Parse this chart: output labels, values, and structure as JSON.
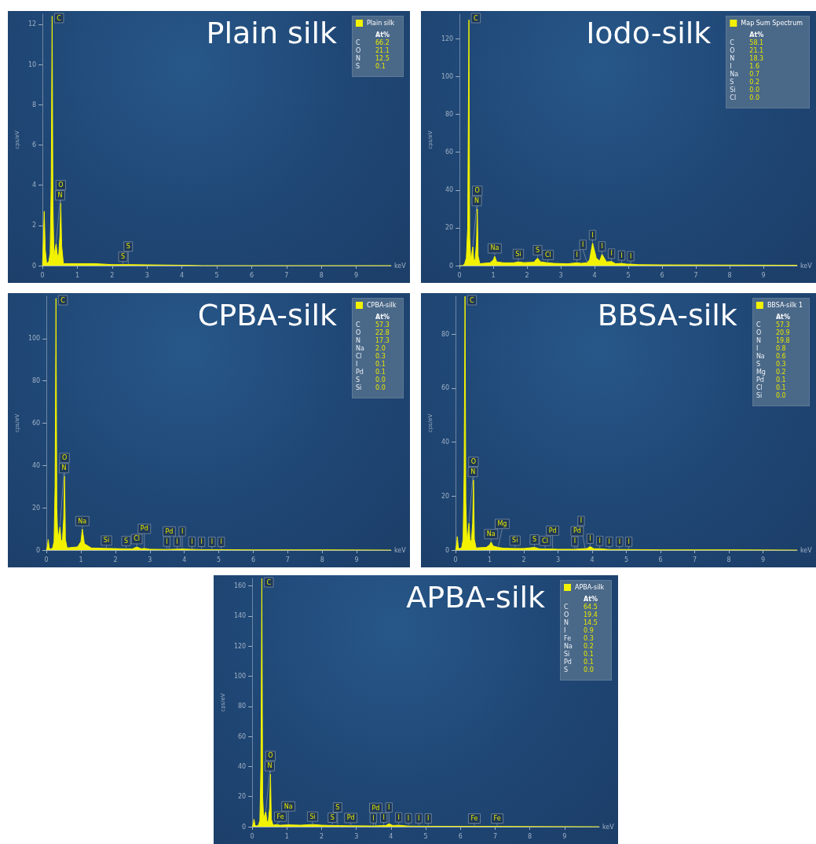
{
  "chart_data": [
    {
      "type": "area",
      "title": "Plain silk",
      "xlabel": "keV",
      "ylabel": "cps/eV",
      "xlim": [
        0,
        10
      ],
      "xticks": [
        0,
        1,
        2,
        3,
        4,
        5,
        6,
        7,
        8,
        9
      ],
      "ylim": [
        0,
        12.5
      ],
      "yticks": [
        0,
        2,
        4,
        6,
        8,
        10,
        12
      ],
      "grid": false,
      "legend": "top right",
      "marker": "none",
      "line_style": "solid",
      "x": [
        0,
        0.03,
        0.05,
        0.08,
        0.12,
        0.18,
        0.22,
        0.25,
        0.277,
        0.3,
        0.33,
        0.36,
        0.392,
        0.42,
        0.46,
        0.5,
        0.525,
        0.55,
        0.6,
        0.7,
        1.0,
        1.5,
        2.0,
        2.5,
        3.0,
        4.0,
        4.6,
        10.0
      ],
      "series": [
        {
          "name": "Plain silk",
          "color": "#f2f200",
          "values": [
            0,
            1.5,
            2.7,
            0.8,
            0.1,
            0.2,
            0.6,
            4,
            12.4,
            3,
            0.5,
            0.8,
            1.1,
            0.6,
            0.4,
            1.5,
            3.1,
            1.0,
            0.1,
            0.1,
            0.1,
            0.1,
            0.05,
            0.05,
            0.04,
            0.02,
            0,
            0
          ]
        }
      ],
      "annotations": [
        {
          "text": "C",
          "x": 0.277,
          "y": 12.4
        },
        {
          "text": "N",
          "x": 0.392,
          "y": 1.1
        },
        {
          "text": "O",
          "x": 0.525,
          "y": 3.1
        },
        {
          "text": "S",
          "x": 2.31,
          "y": 0.05
        },
        {
          "text": "S",
          "x": 2.46,
          "y": 0.05
        },
        "At%",
        "C",
        "66.2",
        "O",
        "21.1",
        "N",
        "12.5",
        "S",
        "0.1"
      ]
    },
    {
      "type": "area",
      "title": "Iodo-silk",
      "xlabel": "keV",
      "ylabel": "cps/eV",
      "xlim": [
        0,
        10
      ],
      "xticks": [
        0,
        1,
        2,
        3,
        4,
        5,
        6,
        7,
        8,
        9
      ],
      "ylim": [
        0,
        133
      ],
      "yticks": [
        0,
        20,
        40,
        60,
        80,
        100,
        120
      ],
      "grid": false,
      "legend": "top right",
      "marker": "none",
      "line_style": "solid",
      "x": [
        0.0,
        0.1,
        0.15,
        0.2,
        0.24,
        0.277,
        0.3,
        0.33,
        0.36,
        0.392,
        0.42,
        0.46,
        0.5,
        0.525,
        0.55,
        0.6,
        0.7,
        0.9,
        1.0,
        1.04,
        1.1,
        1.3,
        1.6,
        1.74,
        1.9,
        2.2,
        2.31,
        2.4,
        2.62,
        2.8,
        3.2,
        3.48,
        3.6,
        3.77,
        3.85,
        3.94,
        4.05,
        4.15,
        4.22,
        4.35,
        4.5,
        4.62,
        4.8,
        4.95,
        5.07,
        5.3,
        6.0,
        8.0,
        10.0
      ],
      "series": [
        {
          "name": "Map Sum Spectrum",
          "color": "#f2f200",
          "values": [
            0,
            0,
            1,
            4,
            20,
            130,
            15,
            4,
            6,
            10,
            3,
            3,
            12,
            30,
            5,
            1,
            1.2,
            1.5,
            3,
            5,
            2,
            1.5,
            1.5,
            2,
            1.6,
            1.8,
            4,
            2,
            1.5,
            1.2,
            1,
            1.5,
            1.2,
            1.5,
            3,
            12,
            4,
            2.5,
            6,
            2,
            2.2,
            1,
            1.2,
            0.8,
            0.8,
            0.5,
            0.4,
            0.3,
            0.2
          ]
        }
      ],
      "annotations": [
        {
          "text": "C",
          "x": 0.277,
          "y": 130
        },
        {
          "text": "N",
          "x": 0.392,
          "y": 10
        },
        {
          "text": "O",
          "x": 0.525,
          "y": 30
        },
        {
          "text": "Na",
          "x": 1.04,
          "y": 5
        },
        {
          "text": "Si",
          "x": 1.74,
          "y": 2
        },
        {
          "text": "S",
          "x": 2.31,
          "y": 4
        },
        {
          "text": "Cl",
          "x": 2.62,
          "y": 1.5
        },
        {
          "text": "I",
          "x": 3.48,
          "y": 1.5
        },
        {
          "text": "I",
          "x": 3.77,
          "y": 1.5
        },
        {
          "text": "I",
          "x": 3.94,
          "y": 12
        },
        {
          "text": "I",
          "x": 4.22,
          "y": 6
        },
        {
          "text": "I",
          "x": 4.5,
          "y": 2.2
        },
        {
          "text": "I",
          "x": 4.8,
          "y": 1.2
        },
        {
          "text": "I",
          "x": 5.07,
          "y": 0.8
        },
        "At%",
        "C",
        "58.1",
        "O",
        "21.1",
        "N",
        "18.3",
        "I",
        "1.6",
        "Na",
        "0.7",
        "S",
        "0.2",
        "Si",
        "0.0",
        "Cl",
        "0.0"
      ]
    },
    {
      "type": "area",
      "title": "CPBA-silk",
      "xlabel": "keV",
      "ylabel": "cps/eV",
      "xlim": [
        0,
        10
      ],
      "xticks": [
        0,
        1,
        2,
        3,
        4,
        5,
        6,
        7,
        8,
        9
      ],
      "ylim": [
        0,
        120
      ],
      "yticks": [
        0,
        20,
        40,
        60,
        80,
        100
      ],
      "grid": false,
      "legend": "top right",
      "marker": "none",
      "line_style": "solid",
      "x": [
        0,
        0.03,
        0.05,
        0.08,
        0.12,
        0.18,
        0.22,
        0.25,
        0.277,
        0.3,
        0.33,
        0.36,
        0.392,
        0.42,
        0.46,
        0.5,
        0.525,
        0.55,
        0.6,
        0.7,
        0.9,
        1.0,
        1.04,
        1.1,
        1.3,
        1.74,
        2.0,
        2.31,
        2.5,
        2.62,
        2.75,
        2.84,
        3.0,
        3.5,
        3.94,
        4.5,
        5.0,
        6.0,
        8.0,
        10.0
      ],
      "series": [
        {
          "name": "CPBA-silk",
          "color": "#f2f200",
          "values": [
            0,
            2,
            5,
            1,
            0.5,
            1,
            4,
            30,
            119,
            20,
            5,
            8,
            11,
            5,
            4,
            15,
            35,
            5,
            1,
            1.2,
            1.5,
            4,
            10,
            3,
            1,
            0.8,
            0.7,
            0.6,
            0.6,
            1.5,
            0.6,
            0.8,
            0.4,
            0.3,
            0.5,
            0.2,
            0.2,
            0.1,
            0.1,
            0
          ]
        }
      ],
      "annotations": [
        {
          "text": "C",
          "x": 0.277,
          "y": 119
        },
        {
          "text": "N",
          "x": 0.392,
          "y": 11
        },
        {
          "text": "O",
          "x": 0.525,
          "y": 35
        },
        {
          "text": "Na",
          "x": 1.04,
          "y": 10
        },
        {
          "text": "Si",
          "x": 1.74,
          "y": 0.8
        },
        {
          "text": "S",
          "x": 2.31,
          "y": 0.6
        },
        {
          "text": "Cl",
          "x": 2.62,
          "y": 1.5
        },
        {
          "text": "Pd",
          "x": 2.84,
          "y": 0.8
        },
        {
          "text": "I",
          "x": 3.49,
          "y": 0.3
        },
        {
          "text": "Pd",
          "x": 3.56,
          "y": 0.3
        },
        {
          "text": "I",
          "x": 3.79,
          "y": 0.3
        },
        {
          "text": "I",
          "x": 3.94,
          "y": 0.5
        },
        {
          "text": "I",
          "x": 4.22,
          "y": 0.3
        },
        {
          "text": "I",
          "x": 4.5,
          "y": 0.2
        },
        {
          "text": "I",
          "x": 4.8,
          "y": 0.2
        },
        {
          "text": "I",
          "x": 5.07,
          "y": 0.2
        },
        "At%",
        "C",
        "57.3",
        "O",
        "22.8",
        "N",
        "17.3",
        "Na",
        "2.0",
        "Cl",
        "0.3",
        "I",
        "0.1",
        "Pd",
        "0.1",
        "S",
        "0.0",
        "Si",
        "0.0"
      ]
    },
    {
      "type": "area",
      "title": "BBSA-silk",
      "xlabel": "keV",
      "ylabel": "cps/eV",
      "xlim": [
        0,
        10
      ],
      "xticks": [
        0,
        1,
        2,
        3,
        4,
        5,
        6,
        7,
        8,
        9
      ],
      "ylim": [
        0,
        94
      ],
      "yticks": [
        0,
        20,
        40,
        60,
        80
      ],
      "grid": false,
      "legend": "top right",
      "marker": "none",
      "line_style": "solid",
      "x": [
        0,
        0.03,
        0.05,
        0.08,
        0.12,
        0.18,
        0.22,
        0.25,
        0.277,
        0.3,
        0.33,
        0.36,
        0.392,
        0.42,
        0.46,
        0.5,
        0.525,
        0.55,
        0.6,
        0.7,
        0.9,
        1.0,
        1.04,
        1.1,
        1.25,
        1.4,
        1.74,
        2.0,
        2.31,
        2.45,
        2.62,
        2.84,
        3.0,
        3.5,
        3.85,
        3.94,
        4.05,
        4.22,
        4.5,
        5.0,
        6.0,
        8.0,
        10.0
      ],
      "series": [
        {
          "name": "BBSA-silk 1",
          "color": "#f2f200",
          "values": [
            0,
            2,
            5,
            1,
            0.5,
            1,
            4,
            28,
            94,
            18,
            4,
            6,
            10,
            4,
            3,
            10,
            26,
            4,
            0.8,
            0.9,
            1,
            2,
            3,
            1.5,
            1,
            0.7,
            0.6,
            0.6,
            1,
            0.5,
            0.4,
            0.4,
            0.3,
            0.3,
            0.6,
            1.3,
            0.5,
            0.5,
            0.2,
            0.2,
            0.1,
            0.1,
            0
          ]
        }
      ],
      "annotations": [
        {
          "text": "C",
          "x": 0.277,
          "y": 94
        },
        {
          "text": "N",
          "x": 0.392,
          "y": 10
        },
        {
          "text": "O",
          "x": 0.525,
          "y": 26
        },
        {
          "text": "Na",
          "x": 1.04,
          "y": 3
        },
        {
          "text": "Mg",
          "x": 1.25,
          "y": 1
        },
        {
          "text": "Si",
          "x": 1.74,
          "y": 0.6
        },
        {
          "text": "S",
          "x": 2.31,
          "y": 1
        },
        {
          "text": "Cl",
          "x": 2.62,
          "y": 0.4
        },
        {
          "text": "Pd",
          "x": 2.84,
          "y": 0.4
        },
        {
          "text": "I",
          "x": 3.49,
          "y": 0.3
        },
        {
          "text": "Pd",
          "x": 3.56,
          "y": 0.3
        },
        {
          "text": "I",
          "x": 3.79,
          "y": 0.4
        },
        {
          "text": "I",
          "x": 3.94,
          "y": 1.3
        },
        {
          "text": "I",
          "x": 4.22,
          "y": 0.5
        },
        {
          "text": "I",
          "x": 4.5,
          "y": 0.2
        },
        {
          "text": "I",
          "x": 4.8,
          "y": 0.2
        },
        {
          "text": "I",
          "x": 5.07,
          "y": 0.2
        },
        "At%",
        "C",
        "57.3",
        "O",
        "20.9",
        "N",
        "19.8",
        "I",
        "0.8",
        "Na",
        "0.6",
        "S",
        "0.3",
        "Mg",
        "0.2",
        "Pd",
        "0.1",
        "Cl",
        "0.1",
        "Si",
        "0.0"
      ]
    },
    {
      "type": "area",
      "title": "APBA-silk",
      "xlabel": "keV",
      "ylabel": "cps/eV",
      "xlim": [
        0,
        10
      ],
      "xticks": [
        0,
        1,
        2,
        3,
        4,
        5,
        6,
        7,
        8,
        9
      ],
      "ylim": [
        0,
        165
      ],
      "yticks": [
        0,
        20,
        40,
        60,
        80,
        100,
        120,
        140,
        160
      ],
      "grid": false,
      "legend": "top right",
      "marker": "none",
      "line_style": "solid",
      "x": [
        0,
        0.03,
        0.05,
        0.08,
        0.12,
        0.18,
        0.22,
        0.25,
        0.277,
        0.3,
        0.33,
        0.36,
        0.392,
        0.42,
        0.46,
        0.5,
        0.525,
        0.55,
        0.6,
        0.7,
        0.8,
        1.0,
        1.04,
        1.1,
        1.4,
        1.74,
        2.0,
        2.31,
        2.84,
        3.5,
        3.85,
        3.94,
        4.05,
        4.22,
        4.5,
        5.0,
        6.4,
        7.06,
        8.0,
        10.0
      ],
      "series": [
        {
          "name": "APBA-silk",
          "color": "#f2f200",
          "values": [
            0,
            2,
            5,
            1,
            0.5,
            1,
            4,
            40,
            165,
            20,
            5,
            8,
            10,
            4,
            3,
            12,
            35,
            5,
            1,
            1.5,
            1,
            1.2,
            1.5,
            1.2,
            1,
            1.5,
            1,
            0.8,
            0.6,
            0.5,
            0.8,
            2,
            0.8,
            1,
            0.4,
            0.3,
            0.2,
            0.2,
            0.1,
            0
          ]
        }
      ],
      "annotations": [
        {
          "text": "C",
          "x": 0.277,
          "y": 165
        },
        {
          "text": "N",
          "x": 0.392,
          "y": 10
        },
        {
          "text": "O",
          "x": 0.525,
          "y": 35
        },
        {
          "text": "Fe",
          "x": 0.7,
          "y": 1.5
        },
        {
          "text": "Na",
          "x": 1.04,
          "y": 1.5
        },
        {
          "text": "Si",
          "x": 1.74,
          "y": 1.5
        },
        {
          "text": "S",
          "x": 2.31,
          "y": 0.8
        },
        {
          "text": "S",
          "x": 2.46,
          "y": 0.7
        },
        {
          "text": "Pd",
          "x": 2.84,
          "y": 0.6
        },
        {
          "text": "I",
          "x": 3.49,
          "y": 0.5
        },
        {
          "text": "Pd",
          "x": 3.56,
          "y": 0.5
        },
        {
          "text": "I",
          "x": 3.79,
          "y": 0.7
        },
        {
          "text": "I",
          "x": 3.94,
          "y": 2
        },
        {
          "text": "I",
          "x": 4.22,
          "y": 1
        },
        {
          "text": "I",
          "x": 4.5,
          "y": 0.4
        },
        {
          "text": "I",
          "x": 4.8,
          "y": 0.35
        },
        {
          "text": "I",
          "x": 5.07,
          "y": 0.3
        },
        {
          "text": "Fe",
          "x": 6.4,
          "y": 0.2
        },
        {
          "text": "Fe",
          "x": 7.06,
          "y": 0.2
        },
        "At%",
        "C",
        "64.5",
        "O",
        "19.4",
        "N",
        "14.5",
        "I",
        "0.9",
        "Fe",
        "0.3",
        "Na",
        "0.2",
        "Si",
        "0.1",
        "Pd",
        "0.1",
        "S",
        "0.0"
      ]
    }
  ]
}
